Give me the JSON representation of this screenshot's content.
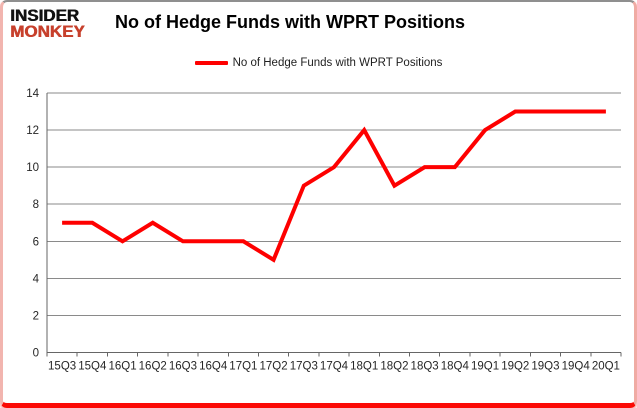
{
  "brand": {
    "line1": "INSIDER",
    "line2": "MONKEY",
    "red": "#c7402c"
  },
  "title": "No of Hedge Funds with WPRT Positions",
  "legend": {
    "label": "No of Hedge Funds with WPRT Positions"
  },
  "chart_data": {
    "type": "line",
    "title": "No of Hedge Funds with WPRT Positions",
    "categories": [
      "15Q3",
      "15Q4",
      "16Q1",
      "16Q2",
      "16Q3",
      "16Q4",
      "17Q1",
      "17Q2",
      "17Q3",
      "17Q4",
      "18Q1",
      "18Q2",
      "18Q3",
      "18Q4",
      "19Q1",
      "19Q2",
      "19Q3",
      "19Q4",
      "20Q1"
    ],
    "series": [
      {
        "name": "No of Hedge Funds with WPRT Positions",
        "color": "#fe0000",
        "values": [
          7,
          7,
          6,
          7,
          6,
          6,
          6,
          5,
          9,
          10,
          12,
          9,
          10,
          10,
          12,
          13,
          13,
          13,
          13
        ]
      }
    ],
    "xlabel": "",
    "ylabel": "",
    "ylim": [
      0,
      14
    ],
    "yticks": [
      0,
      2,
      4,
      6,
      8,
      10,
      12,
      14
    ],
    "grid": true,
    "legend_position": "top"
  },
  "colors": {
    "line": "#fe0000",
    "grid": "#8a8a8a",
    "axis": "#666666",
    "tick_text": "#262626",
    "background": "#ffffff"
  }
}
